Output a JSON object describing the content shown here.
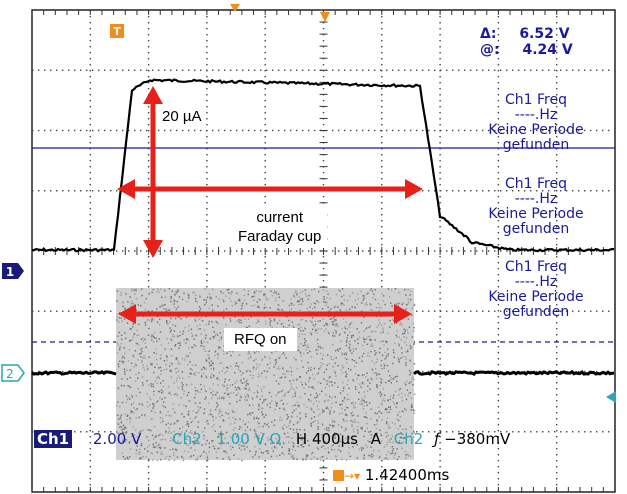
{
  "cursor": {
    "delta_label": "Δ:",
    "delta_value": "6.52 V",
    "at_label": "@:",
    "at_value": "4.24 V"
  },
  "measurements": [
    {
      "line1": "Ch1 Freq",
      "line2": "----.Hz",
      "line3": "Keine Periode",
      "line4": "gefunden"
    },
    {
      "line1": "Ch1 Freq",
      "line2": "----.Hz",
      "line3": "Keine Periode",
      "line4": "gefunden"
    },
    {
      "line1": "Ch1 Freq",
      "line2": "----.Hz",
      "line3": "Keine Periode",
      "line4": "gefunden"
    }
  ],
  "annotations": {
    "amplitude": "20 µA",
    "current_line1": "current",
    "current_line2": "Faraday cup",
    "rfq": "RFQ on"
  },
  "markers": {
    "ch1": "1",
    "ch2": "2",
    "trigger": "T"
  },
  "status_bar": {
    "ch1_label": "Ch1",
    "ch1_scale": "2.00 V",
    "ch2_label": "Ch2",
    "ch2_scale": "1.00 V Ω",
    "horizontal": "H 400µs",
    "acq_mode": "A",
    "trig_source": "Ch2",
    "trig_slope": "ƒ",
    "trig_level": "−380mV",
    "trig_position": "1.42400ms"
  },
  "colors": {
    "blue": "#1a1a9c",
    "ch2": "#2aa6b8",
    "trigger_orange": "#f28c1a",
    "arrow_red": "#e8201a",
    "grid": "#3a3a3a"
  }
}
